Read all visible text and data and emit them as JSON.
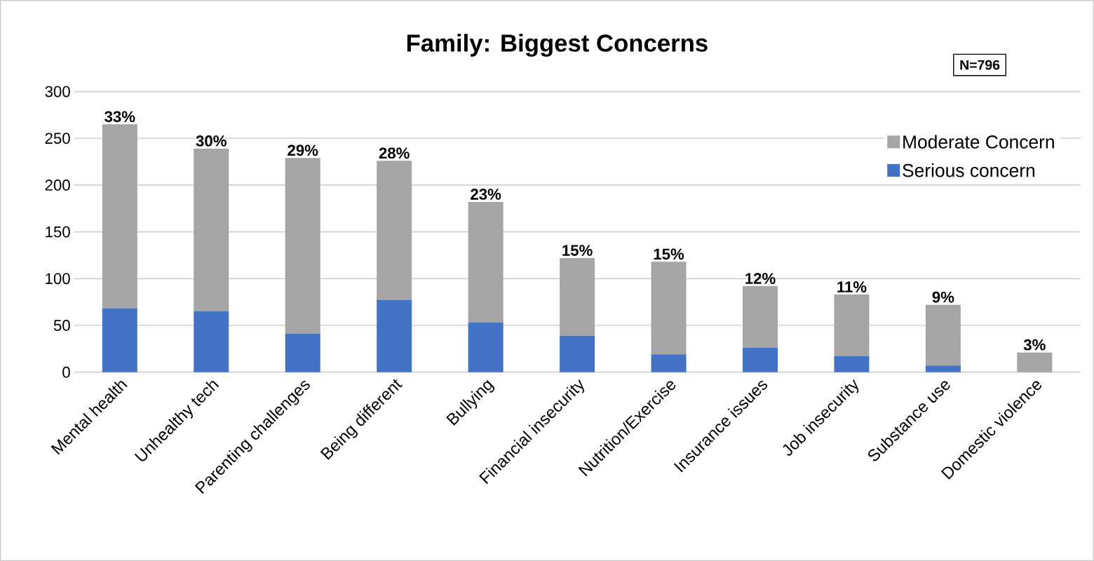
{
  "chart_data": {
    "type": "bar",
    "title": "Family:  Biggest Concerns",
    "stacked": true,
    "categories": [
      "Mental health",
      "Unhealthy tech",
      "Parenting challenges",
      "Being different",
      "Bullying",
      "Financial insecurity",
      "Nutrition/Exercise",
      "Insurance issues",
      "Job insecurity",
      "Substance use",
      "Domestic violence"
    ],
    "series": [
      {
        "name": "Serious concern",
        "color": "#4472c4",
        "values": [
          68,
          65,
          41,
          77,
          53,
          39,
          19,
          26,
          17,
          7,
          0
        ]
      },
      {
        "name": "Moderate Concern",
        "color": "#a5a5a5",
        "values": [
          197,
          174,
          188,
          149,
          129,
          83,
          99,
          66,
          66,
          65,
          21
        ]
      }
    ],
    "ylim": [
      0,
      300
    ],
    "yticks": [
      0,
      50,
      100,
      150,
      200,
      250,
      300
    ],
    "grid": "y",
    "legend": "top right",
    "annotations": [
      {
        "text": "33%",
        "x": "Mental health",
        "y": 265
      },
      {
        "text": "30%",
        "x": "Unhealthy tech",
        "y": 239
      },
      {
        "text": "29%",
        "x": "Parenting challenges",
        "y": 229
      },
      {
        "text": "28%",
        "x": "Being different",
        "y": 226
      },
      {
        "text": "23%",
        "x": "Bullying",
        "y": 182
      },
      {
        "text": "15%",
        "x": "Financial insecurity",
        "y": 122
      },
      {
        "text": "15%",
        "x": "Nutrition/Exercise",
        "y": 118
      },
      {
        "text": "12%",
        "x": "Insurance issues",
        "y": 92
      },
      {
        "text": "11%",
        "x": "Job insecurity",
        "y": 83
      },
      {
        "text": "9%",
        "x": "Substance use",
        "y": 72
      },
      {
        "text": "3%",
        "x": "Domestic violence",
        "y": 21
      },
      "N=796"
    ]
  }
}
